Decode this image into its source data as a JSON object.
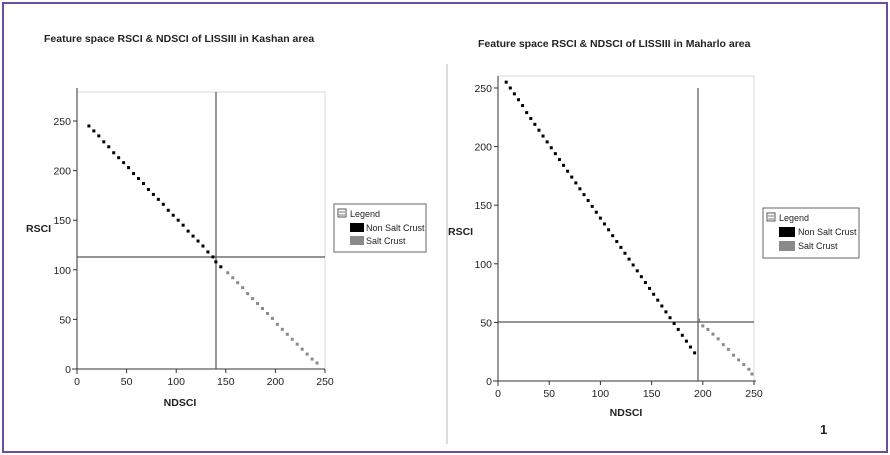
{
  "chart_data": [
    {
      "type": "scatter",
      "title": "Feature space RSCI & NDSCI of LISSIII in Kashan area",
      "xlabel": "NDSCI",
      "ylabel": "RSCI",
      "xlim": [
        0,
        250
      ],
      "ylim": [
        0,
        250
      ],
      "xticks": [
        "0",
        "50",
        "100",
        "150",
        "200",
        "250"
      ],
      "yticks": [
        "0",
        "50",
        "100",
        "150",
        "200",
        "250"
      ],
      "threshold_lines": {
        "x": 140,
        "y": 100
      },
      "legend": {
        "title": "Legend",
        "placement": "right",
        "entries": [
          {
            "label": "Non Salt Crust",
            "color": "#000000"
          },
          {
            "label": "Salt Crust",
            "color": "#8a8a8a"
          }
        ]
      },
      "series": [
        {
          "name": "Non Salt Crust",
          "color": "#000000",
          "points": [
            [
              12,
              245
            ],
            [
              17,
              240
            ],
            [
              22,
              235
            ],
            [
              27,
              229
            ],
            [
              32,
              224
            ],
            [
              37,
              218
            ],
            [
              42,
              213
            ],
            [
              47,
              208
            ],
            [
              52,
              203
            ],
            [
              57,
              197
            ],
            [
              62,
              192
            ],
            [
              67,
              187
            ],
            [
              72,
              181
            ],
            [
              77,
              176
            ],
            [
              82,
              171
            ],
            [
              87,
              166
            ],
            [
              92,
              160
            ],
            [
              97,
              155
            ],
            [
              102,
              150
            ],
            [
              107,
              145
            ],
            [
              112,
              139
            ],
            [
              117,
              134
            ],
            [
              122,
              129
            ],
            [
              127,
              124
            ],
            [
              132,
              118
            ],
            [
              137,
              113
            ],
            [
              140,
              108
            ],
            [
              145,
              103
            ]
          ]
        },
        {
          "name": "Salt Crust",
          "color": "#8a8a8a",
          "points": [
            [
              152,
              97
            ],
            [
              157,
              92
            ],
            [
              162,
              87
            ],
            [
              167,
              82
            ],
            [
              172,
              76
            ],
            [
              177,
              71
            ],
            [
              182,
              66
            ],
            [
              187,
              61
            ],
            [
              192,
              56
            ],
            [
              197,
              51
            ],
            [
              202,
              45
            ],
            [
              207,
              40
            ],
            [
              212,
              35
            ],
            [
              217,
              30
            ],
            [
              222,
              25
            ],
            [
              227,
              20
            ],
            [
              232,
              15
            ],
            [
              237,
              10
            ],
            [
              242,
              6
            ]
          ]
        }
      ]
    },
    {
      "type": "scatter",
      "title": "Feature space RSCI & NDSCI of LISSIII in Maharlo area",
      "xlabel": "NDSCI",
      "ylabel": "RSCI",
      "xlim": [
        0,
        250
      ],
      "ylim": [
        0,
        250
      ],
      "xticks": [
        "0",
        "50",
        "100",
        "150",
        "200",
        "250"
      ],
      "yticks": [
        "0",
        "50",
        "100",
        "150",
        "200",
        "250"
      ],
      "threshold_lines": {
        "x": 195,
        "y": 50
      },
      "legend": {
        "title": "Legend",
        "placement": "right",
        "entries": [
          {
            "label": "Non Salt Crust",
            "color": "#000000"
          },
          {
            "label": "Salt Crust",
            "color": "#8a8a8a"
          }
        ]
      },
      "series": [
        {
          "name": "Non Salt Crust",
          "color": "#000000",
          "points": [
            [
              8,
              255
            ],
            [
              12,
              250
            ],
            [
              16,
              245
            ],
            [
              20,
              240
            ],
            [
              24,
              235
            ],
            [
              28,
              229
            ],
            [
              32,
              224
            ],
            [
              36,
              219
            ],
            [
              40,
              214
            ],
            [
              44,
              209
            ],
            [
              48,
              204
            ],
            [
              52,
              199
            ],
            [
              56,
              194
            ],
            [
              60,
              189
            ],
            [
              64,
              184
            ],
            [
              68,
              179
            ],
            [
              72,
              174
            ],
            [
              76,
              169
            ],
            [
              80,
              164
            ],
            [
              84,
              159
            ],
            [
              88,
              154
            ],
            [
              92,
              149
            ],
            [
              96,
              144
            ],
            [
              100,
              139
            ],
            [
              104,
              134
            ],
            [
              108,
              129
            ],
            [
              112,
              124
            ],
            [
              116,
              119
            ],
            [
              120,
              114
            ],
            [
              124,
              109
            ],
            [
              128,
              104
            ],
            [
              132,
              99
            ],
            [
              136,
              94
            ],
            [
              140,
              89
            ],
            [
              144,
              84
            ],
            [
              148,
              79
            ],
            [
              152,
              74
            ],
            [
              156,
              69
            ],
            [
              160,
              64
            ],
            [
              164,
              59
            ],
            [
              168,
              54
            ],
            [
              172,
              49
            ],
            [
              176,
              44
            ],
            [
              180,
              39
            ],
            [
              184,
              34
            ],
            [
              188,
              29
            ],
            [
              192,
              24
            ]
          ]
        },
        {
          "name": "Salt Crust",
          "color": "#8a8a8a",
          "points": [
            [
              196,
              52
            ],
            [
              200,
              47
            ],
            [
              205,
              44
            ],
            [
              210,
              40
            ],
            [
              215,
              36
            ],
            [
              220,
              31
            ],
            [
              225,
              27
            ],
            [
              230,
              22
            ],
            [
              235,
              18
            ],
            [
              240,
              14
            ],
            [
              245,
              10
            ],
            [
              248,
              6
            ]
          ]
        }
      ]
    }
  ],
  "page": {
    "page_number": "1"
  }
}
